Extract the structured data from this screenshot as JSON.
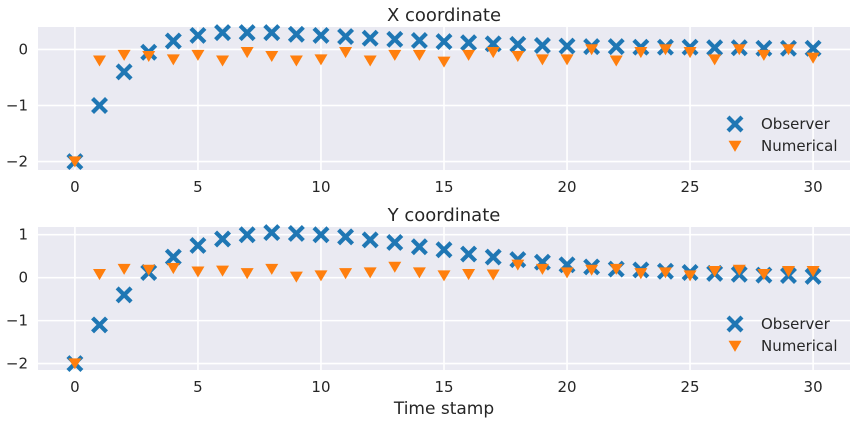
{
  "chart_data": [
    {
      "type": "scatter",
      "title": "X coordinate",
      "xlabel": "",
      "ylabel": "",
      "xlim": [
        -1.5,
        31.5
      ],
      "ylim": [
        -2.15,
        0.4
      ],
      "xticks": [
        0,
        5,
        10,
        15,
        20,
        25,
        30
      ],
      "yticks": [
        -2,
        -1,
        0
      ],
      "grid": true,
      "legend": "lower-right",
      "x": [
        0,
        1,
        2,
        3,
        4,
        5,
        6,
        7,
        8,
        9,
        10,
        11,
        12,
        13,
        14,
        15,
        16,
        17,
        18,
        19,
        20,
        21,
        22,
        23,
        24,
        25,
        26,
        27,
        28,
        29,
        30
      ],
      "series": [
        {
          "name": "Observer",
          "marker": "x",
          "color": "#1f77b4",
          "values": [
            -2.0,
            -1.0,
            -0.4,
            -0.05,
            0.15,
            0.25,
            0.3,
            0.3,
            0.3,
            0.27,
            0.25,
            0.23,
            0.2,
            0.18,
            0.16,
            0.14,
            0.12,
            0.1,
            0.09,
            0.07,
            0.06,
            0.05,
            0.05,
            0.04,
            0.04,
            0.04,
            0.03,
            0.03,
            0.02,
            0.02,
            0.02
          ]
        },
        {
          "name": "Numerical",
          "marker": "v",
          "color": "#ff7f0e",
          "values": [
            -2.0,
            -0.2,
            -0.1,
            -0.12,
            -0.18,
            -0.1,
            -0.2,
            -0.05,
            -0.12,
            -0.2,
            -0.18,
            -0.05,
            -0.2,
            -0.1,
            -0.1,
            -0.22,
            -0.1,
            -0.05,
            -0.12,
            -0.18,
            -0.18,
            0.0,
            -0.2,
            -0.05,
            0.0,
            -0.05,
            -0.18,
            0.0,
            -0.1,
            0.0,
            -0.15
          ]
        }
      ]
    },
    {
      "type": "scatter",
      "title": "Y coordinate",
      "xlabel": "Time stamp",
      "ylabel": "",
      "xlim": [
        -1.5,
        31.5
      ],
      "ylim": [
        -2.15,
        1.18
      ],
      "xticks": [
        0,
        5,
        10,
        15,
        20,
        25,
        30
      ],
      "yticks": [
        -2,
        -1,
        0,
        1
      ],
      "grid": true,
      "legend": "lower-right",
      "x": [
        0,
        1,
        2,
        3,
        4,
        5,
        6,
        7,
        8,
        9,
        10,
        11,
        12,
        13,
        14,
        15,
        16,
        17,
        18,
        19,
        20,
        21,
        22,
        23,
        24,
        25,
        26,
        27,
        28,
        29,
        30
      ],
      "series": [
        {
          "name": "Observer",
          "marker": "x",
          "color": "#1f77b4",
          "values": [
            -2.0,
            -1.1,
            -0.4,
            0.12,
            0.48,
            0.75,
            0.9,
            1.0,
            1.05,
            1.03,
            1.0,
            0.95,
            0.88,
            0.82,
            0.72,
            0.65,
            0.55,
            0.48,
            0.42,
            0.36,
            0.3,
            0.25,
            0.2,
            0.18,
            0.15,
            0.12,
            0.1,
            0.08,
            0.06,
            0.05,
            0.03
          ]
        },
        {
          "name": "Numerical",
          "marker": "v",
          "color": "#ff7f0e",
          "values": [
            -2.0,
            0.08,
            0.2,
            0.18,
            0.22,
            0.14,
            0.16,
            0.1,
            0.2,
            0.02,
            0.05,
            0.1,
            0.12,
            0.25,
            0.12,
            0.05,
            0.08,
            0.07,
            0.3,
            0.2,
            0.12,
            0.18,
            0.2,
            0.1,
            0.12,
            0.05,
            0.15,
            0.18,
            0.08,
            0.15,
            0.15
          ]
        }
      ]
    }
  ]
}
